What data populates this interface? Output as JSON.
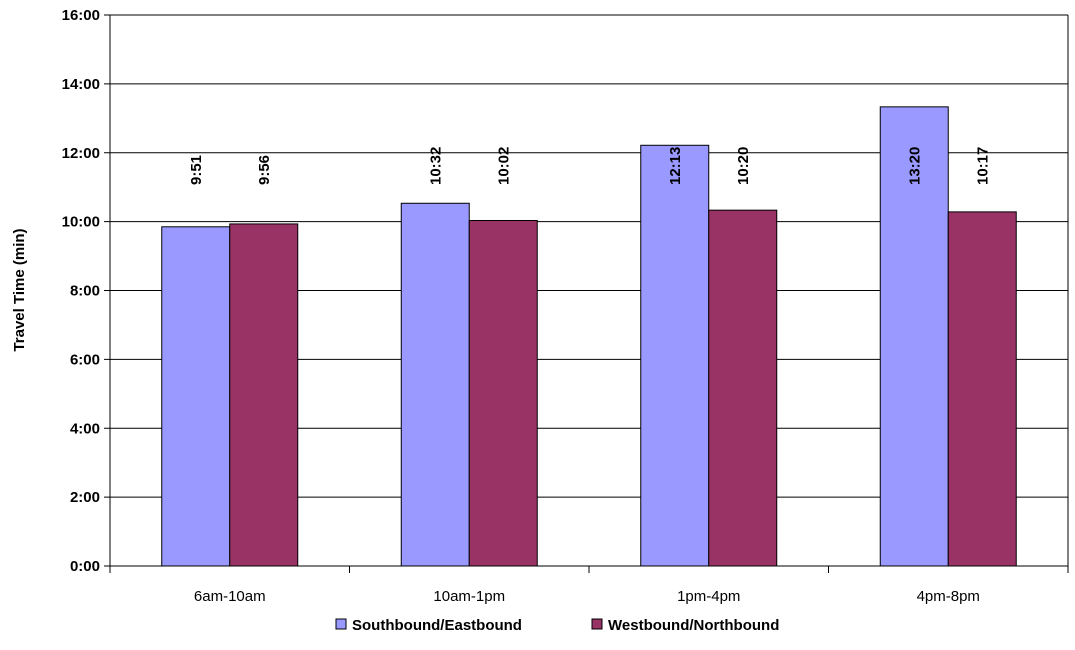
{
  "chart_data": {
    "type": "bar",
    "categories": [
      "6am-10am",
      "10am-1pm",
      "1pm-4pm",
      "4pm-8pm"
    ],
    "series": [
      {
        "name": "Southbound/Eastbound",
        "color": "#9999ff",
        "values": [
          9.85,
          10.533,
          12.217,
          13.333
        ],
        "labels": [
          "9:51",
          "10:32",
          "12:13",
          "13:20"
        ]
      },
      {
        "name": "Westbound/Northbound",
        "color": "#993366",
        "values": [
          9.933,
          10.033,
          10.333,
          10.283
        ],
        "labels": [
          "9:56",
          "10:02",
          "10:20",
          "10:17"
        ]
      }
    ],
    "ylabel": "Travel Time (min)",
    "xlabel": "",
    "ylim": [
      0,
      16
    ],
    "yticks": [
      0,
      2,
      4,
      6,
      8,
      10,
      12,
      14,
      16
    ],
    "ytick_labels": [
      "0:00",
      "2:00",
      "4:00",
      "6:00",
      "8:00",
      "10:00",
      "12:00",
      "14:00",
      "16:00"
    ],
    "grid": true,
    "legend_position": "bottom"
  }
}
